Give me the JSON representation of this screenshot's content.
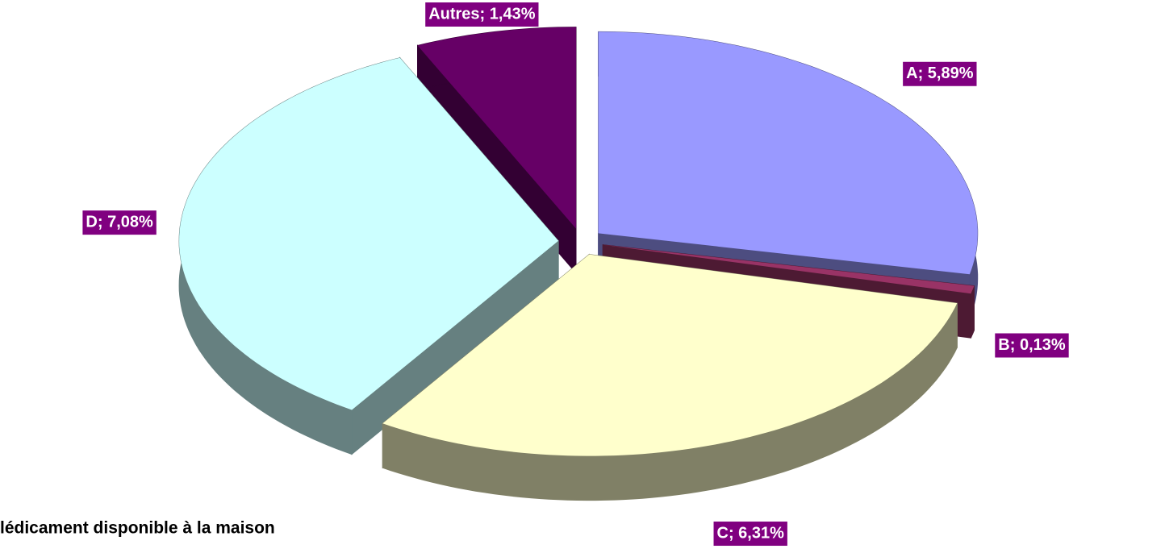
{
  "chart_data": {
    "type": "pie3d",
    "title": "lédicament disponible à la maison",
    "categories": [
      "A",
      "B",
      "C",
      "D",
      "Autres"
    ],
    "values": [
      5.89,
      0.13,
      6.31,
      7.08,
      1.43
    ],
    "value_labels": [
      "A; 5,89%",
      "B; 0,13%",
      "C; 6,31%",
      "D; 7,08%",
      "Autres; 1,43%"
    ],
    "colors": [
      "#9999ff",
      "#993366",
      "#ffffcc",
      "#ccffff",
      "#660066"
    ],
    "label_color": "#800080"
  }
}
